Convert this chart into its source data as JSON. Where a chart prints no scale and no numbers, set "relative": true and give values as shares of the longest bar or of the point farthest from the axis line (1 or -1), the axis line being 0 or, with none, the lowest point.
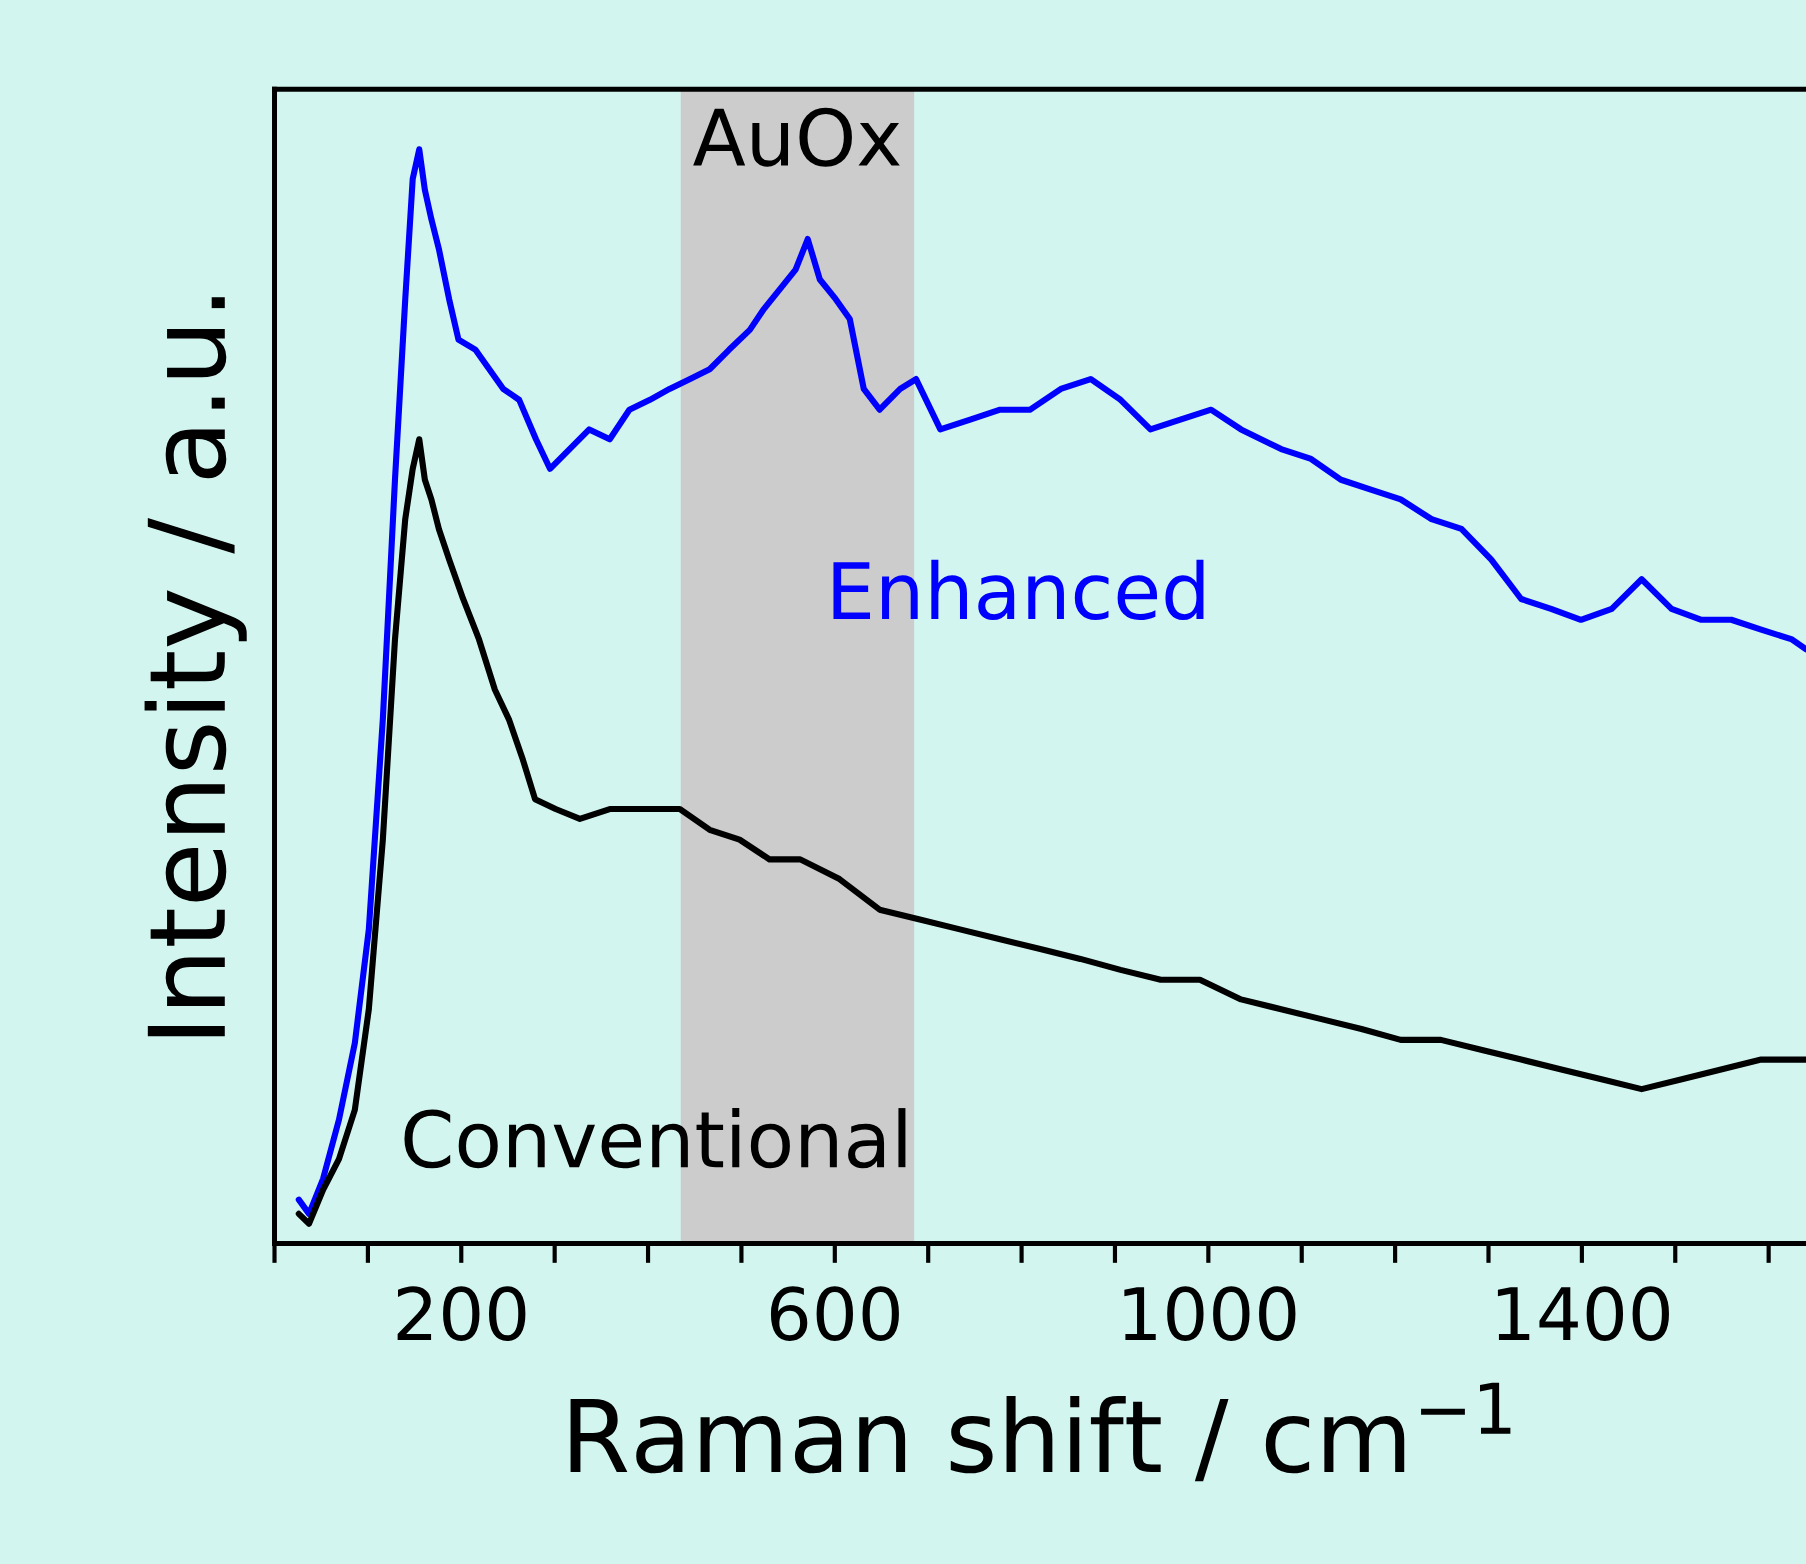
{
  "chart_data": {
    "type": "line",
    "xlabel": "Raman shift / cm$^{−1}$",
    "ylabel": "Intensity / a.u.",
    "relative": true,
    "xlim": [
      0,
      1640
    ],
    "xticks": [
      {
        "value": 0,
        "label": null
      },
      {
        "value": 100,
        "label": null
      },
      200,
      {
        "value": 300,
        "label": null
      },
      {
        "value": 400,
        "label": null
      },
      {
        "value": 500,
        "label": null
      },
      600,
      {
        "value": 700,
        "label": null
      },
      {
        "value": 800,
        "label": null
      },
      {
        "value": 900,
        "label": null
      },
      1000,
      {
        "value": 1100,
        "label": null
      },
      {
        "value": 1200,
        "label": null
      },
      {
        "value": 1300,
        "label": null
      },
      1400,
      {
        "value": 1500,
        "label": null
      },
      {
        "value": 1600,
        "label": null
      }
    ],
    "bands": [
      {
        "axis": "x",
        "from": 435,
        "to": 685,
        "label": "AuOx",
        "color": "#cccccc"
      }
    ],
    "grid": false,
    "legend": false,
    "marker": "none",
    "line_style": "solid",
    "series": [
      {
        "name": "Enhanced",
        "color": "#0000ff",
        "x": [
          26,
          37,
          52,
          69,
          86,
          101,
          116,
          129,
          140,
          148,
          155,
          161,
          168,
          176,
          187,
          197,
          215,
          230,
          245,
          262,
          280,
          295,
          316,
          337,
          359,
          380,
          402,
          423,
          445,
          466,
          487,
          509,
          524,
          541,
          558,
          571,
          584,
          601,
          616,
          631,
          648,
          670,
          687,
          713,
          745,
          777,
          809,
          842,
          874,
          906,
          938,
          970,
          1003,
          1035,
          1078,
          1110,
          1142,
          1174,
          1206,
          1239,
          1271,
          1303,
          1335,
          1367,
          1399,
          1432,
          1464,
          1496,
          1528,
          1560,
          1592,
          1625,
          1640
        ],
        "values": [
          0.04,
          0.027,
          0.059,
          0.113,
          0.183,
          0.287,
          0.479,
          0.698,
          0.863,
          0.973,
          1.0,
          0.963,
          0.936,
          0.909,
          0.863,
          0.826,
          0.817,
          0.799,
          0.781,
          0.771,
          0.735,
          0.708,
          0.726,
          0.744,
          0.735,
          0.762,
          0.771,
          0.781,
          0.79,
          0.799,
          0.817,
          0.835,
          0.854,
          0.872,
          0.89,
          0.918,
          0.881,
          0.863,
          0.845,
          0.781,
          0.762,
          0.781,
          0.79,
          0.744,
          0.753,
          0.762,
          0.762,
          0.781,
          0.79,
          0.771,
          0.744,
          0.753,
          0.762,
          0.744,
          0.726,
          0.717,
          0.698,
          0.689,
          0.68,
          0.662,
          0.653,
          0.625,
          0.589,
          0.58,
          0.57,
          0.58,
          0.607,
          0.58,
          0.57,
          0.57,
          0.561,
          0.552,
          0.543
        ]
      },
      {
        "name": "Conventional",
        "color": "#000000",
        "x": [
          26,
          37,
          52,
          69,
          86,
          101,
          116,
          129,
          140,
          148,
          155,
          161,
          168,
          176,
          187,
          202,
          219,
          236,
          251,
          266,
          279,
          301,
          327,
          359,
          391,
          434,
          466,
          498,
          530,
          563,
          605,
          648,
          691,
          734,
          777,
          820,
          863,
          906,
          949,
          991,
          1035,
          1078,
          1121,
          1164,
          1206,
          1249,
          1292,
          1335,
          1378,
          1421,
          1464,
          1507,
          1549,
          1592,
          1640
        ],
        "values": [
          0.027,
          0.018,
          0.049,
          0.077,
          0.122,
          0.214,
          0.369,
          0.552,
          0.662,
          0.708,
          0.735,
          0.698,
          0.68,
          0.653,
          0.625,
          0.589,
          0.552,
          0.506,
          0.479,
          0.442,
          0.406,
          0.397,
          0.388,
          0.397,
          0.397,
          0.397,
          0.378,
          0.369,
          0.351,
          0.351,
          0.333,
          0.305,
          0.296,
          0.287,
          0.278,
          0.269,
          0.26,
          0.25,
          0.241,
          0.241,
          0.223,
          0.214,
          0.205,
          0.196,
          0.186,
          0.186,
          0.177,
          0.168,
          0.159,
          0.15,
          0.141,
          0.15,
          0.159,
          0.168,
          0.168
        ]
      }
    ]
  }
}
